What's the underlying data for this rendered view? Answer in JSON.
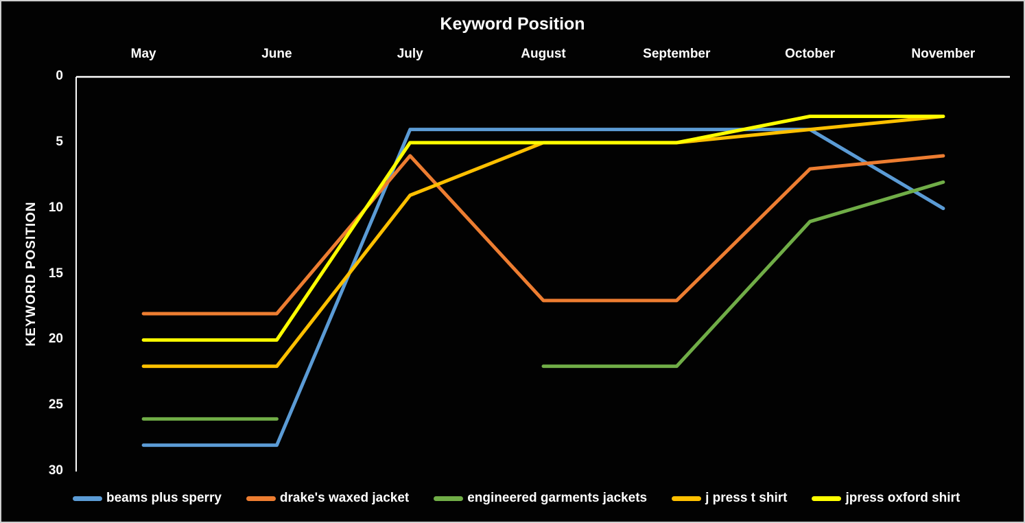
{
  "chart_data": {
    "type": "line",
    "title": "Keyword Position",
    "ylabel": "KEYWORD POSITION",
    "xlabel": "",
    "categories": [
      "May",
      "June",
      "July",
      "August",
      "September",
      "October",
      "November"
    ],
    "y_ticks": [
      0,
      5,
      10,
      15,
      20,
      25,
      30
    ],
    "ylim": [
      0,
      30
    ],
    "y_axis_inverted": true,
    "grid": false,
    "background_color": "#020202",
    "axis_color": "#ffffff",
    "text_color": "#ffffff",
    "legend_position": "bottom",
    "series": [
      {
        "name": "beams plus sperry",
        "color": "#5B9BD5",
        "values": [
          28,
          28,
          4,
          4,
          4,
          4,
          10
        ]
      },
      {
        "name": "drake's waxed jacket",
        "color": "#ED7D31",
        "values": [
          18,
          18,
          6,
          17,
          17,
          7,
          6
        ]
      },
      {
        "name": "engineered garments jackets",
        "color": "#70AD47",
        "values": [
          26,
          26,
          null,
          22,
          22,
          11,
          8
        ]
      },
      {
        "name": "j press t shirt",
        "color": "#FFC000",
        "values": [
          22,
          22,
          9,
          5,
          5,
          4,
          3
        ]
      },
      {
        "name": "jpress oxford shirt",
        "color": "#FFFF00",
        "values": [
          20,
          20,
          5,
          5,
          5,
          3,
          3
        ]
      }
    ]
  }
}
